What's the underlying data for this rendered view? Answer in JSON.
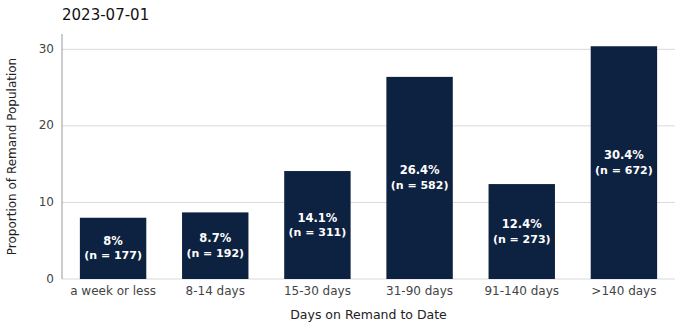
{
  "chart_data": {
    "type": "bar",
    "title": "2023-07-01",
    "xlabel": "Days on Remand to Date",
    "ylabel": "Proportion of Remand Population",
    "categories": [
      "a week or less",
      "8-14 days",
      "15-30 days",
      "31-90 days",
      "91-140 days",
      ">140 days"
    ],
    "values": [
      8.0,
      8.7,
      14.1,
      26.4,
      12.4,
      30.4
    ],
    "value_labels": [
      "8%",
      "8.7%",
      "14.1%",
      "26.4%",
      "12.4%",
      "30.4%"
    ],
    "counts": [
      177,
      192,
      311,
      582,
      273,
      672
    ],
    "count_labels": [
      "(n = 177)",
      "(n = 192)",
      "(n = 311)",
      "(n = 582)",
      "(n = 273)",
      "(n = 672)"
    ],
    "color": "#0d2240",
    "ylim": [
      0,
      32
    ],
    "yticks": [
      0,
      10,
      20,
      30
    ],
    "grid": true,
    "data_labels": true
  }
}
